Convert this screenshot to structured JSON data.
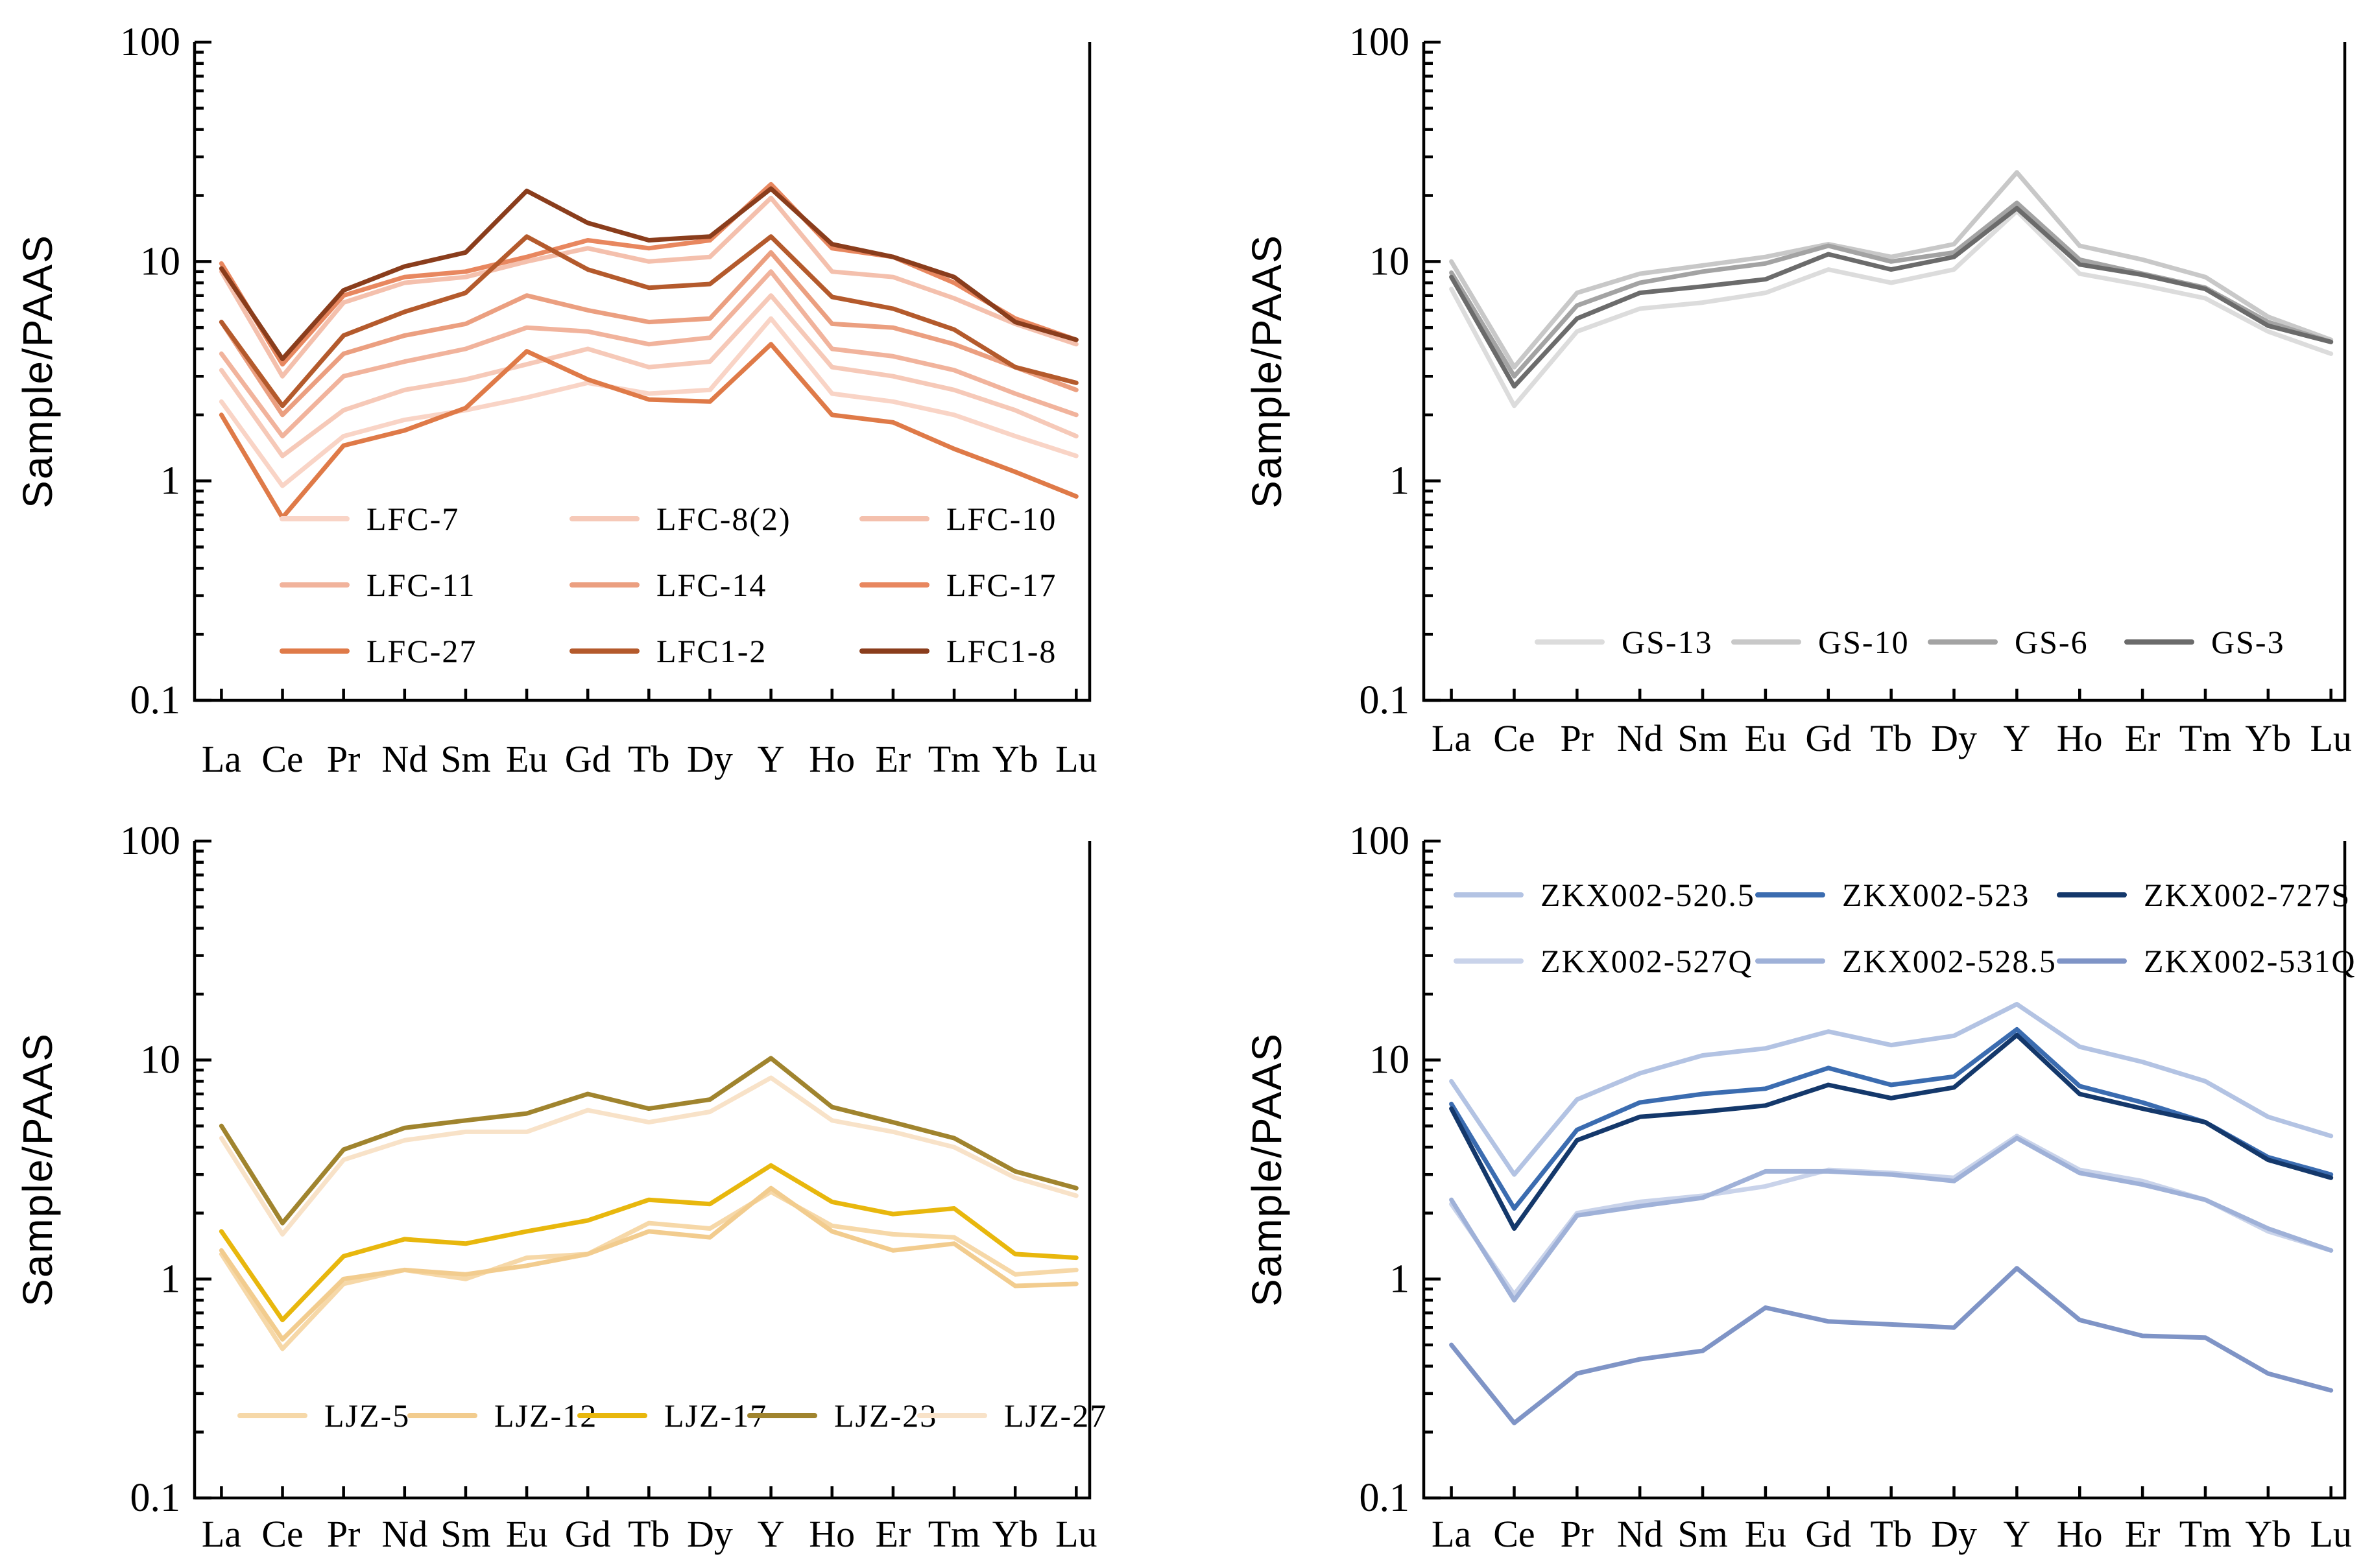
{
  "chart_data": [
    {
      "type": "line",
      "ylabel": "Sample/PAAS",
      "yscale": "log",
      "ylim": [
        0.1,
        100
      ],
      "yticks": [
        "100",
        "10",
        "1",
        "0.1"
      ],
      "categories": [
        "La",
        "Ce",
        "Pr",
        "Nd",
        "Sm",
        "Eu",
        "Gd",
        "Tb",
        "Dy",
        "Y",
        "Ho",
        "Er",
        "Tm",
        "Yb",
        "Lu"
      ],
      "legend_columns": 3,
      "series": [
        {
          "name": "LFC-7",
          "color": "#f9d4c6",
          "values": [
            2.3,
            0.95,
            1.6,
            1.9,
            2.1,
            2.4,
            2.8,
            2.5,
            2.6,
            5.5,
            2.5,
            2.3,
            2.0,
            1.6,
            1.3
          ]
        },
        {
          "name": "LFC-8(2)",
          "color": "#f6c9b8",
          "values": [
            3.2,
            1.3,
            2.1,
            2.6,
            2.9,
            3.4,
            4.0,
            3.3,
            3.5,
            7.0,
            3.3,
            3.0,
            2.6,
            2.1,
            1.6
          ]
        },
        {
          "name": "LFC-10",
          "color": "#f4c0ad",
          "values": [
            9.0,
            3.0,
            6.5,
            8.0,
            8.5,
            10.0,
            11.5,
            10.0,
            10.5,
            19.5,
            9.0,
            8.5,
            6.8,
            5.2,
            4.2
          ]
        },
        {
          "name": "LFC-11",
          "color": "#f1b39c",
          "values": [
            3.8,
            1.6,
            3.0,
            3.5,
            4.0,
            5.0,
            4.8,
            4.2,
            4.5,
            9.0,
            4.0,
            3.7,
            3.2,
            2.5,
            2.0
          ]
        },
        {
          "name": "LFC-14",
          "color": "#eb9f80",
          "values": [
            5.3,
            2.0,
            3.8,
            4.6,
            5.2,
            7.0,
            6.0,
            5.3,
            5.5,
            11.0,
            5.2,
            5.0,
            4.2,
            3.3,
            2.6
          ]
        },
        {
          "name": "LFC-17",
          "color": "#e8875f",
          "values": [
            9.8,
            3.4,
            7.0,
            8.5,
            9.0,
            10.5,
            12.5,
            11.5,
            12.5,
            22.5,
            11.5,
            10.5,
            8.0,
            5.5,
            4.4
          ]
        },
        {
          "name": "LFC-27",
          "color": "#df7a48",
          "values": [
            2.0,
            0.68,
            1.45,
            1.7,
            2.15,
            3.9,
            2.9,
            2.35,
            2.3,
            4.2,
            2.0,
            1.85,
            1.4,
            1.1,
            0.85
          ]
        },
        {
          "name": "LFC1-2",
          "color": "#b45a2c",
          "values": [
            5.3,
            2.2,
            4.6,
            5.9,
            7.2,
            13.0,
            9.2,
            7.6,
            7.9,
            13.0,
            6.9,
            6.1,
            4.9,
            3.3,
            2.8
          ]
        },
        {
          "name": "LFC1-8",
          "color": "#8a3d1c",
          "values": [
            9.3,
            3.6,
            7.4,
            9.5,
            11.0,
            21.0,
            15.0,
            12.5,
            13.0,
            21.5,
            12.0,
            10.5,
            8.5,
            5.3,
            4.4
          ]
        }
      ]
    },
    {
      "type": "line",
      "ylabel": "Sample/PAAS",
      "yscale": "log",
      "ylim": [
        0.1,
        100
      ],
      "yticks": [
        "100",
        "10",
        "1",
        "0.1"
      ],
      "categories": [
        "La",
        "Ce",
        "Pr",
        "Nd",
        "Sm",
        "Eu",
        "Gd",
        "Tb",
        "Dy",
        "Y",
        "Ho",
        "Er",
        "Tm",
        "Yb",
        "Lu"
      ],
      "legend_columns": 4,
      "series": [
        {
          "name": "GS-13",
          "color": "#dcdcdc",
          "values": [
            7.5,
            2.2,
            4.8,
            6.1,
            6.5,
            7.2,
            9.2,
            8.0,
            9.2,
            17.0,
            8.8,
            7.8,
            6.8,
            4.8,
            3.8
          ]
        },
        {
          "name": "GS-10",
          "color": "#c8c8c8",
          "values": [
            10.0,
            3.3,
            7.2,
            8.8,
            9.6,
            10.5,
            12.0,
            10.5,
            12.0,
            25.5,
            11.8,
            10.2,
            8.5,
            5.6,
            4.4
          ]
        },
        {
          "name": "GS-6",
          "color": "#a3a3a3",
          "values": [
            8.9,
            3.0,
            6.3,
            8.0,
            9.0,
            9.8,
            11.8,
            10.0,
            11.0,
            18.5,
            10.2,
            8.8,
            7.6,
            5.3,
            4.3
          ]
        },
        {
          "name": "GS-3",
          "color": "#6b6b6b",
          "values": [
            8.5,
            2.7,
            5.5,
            7.2,
            7.7,
            8.3,
            10.8,
            9.2,
            10.5,
            17.5,
            9.7,
            8.7,
            7.5,
            5.1,
            4.3
          ]
        }
      ]
    },
    {
      "type": "line",
      "ylabel": "Sample/PAAS",
      "yscale": "log",
      "ylim": [
        0.1,
        100
      ],
      "yticks": [
        "100",
        "10",
        "1",
        "0.1"
      ],
      "categories": [
        "La",
        "Ce",
        "Pr",
        "Nd",
        "Sm",
        "Eu",
        "Gd",
        "Tb",
        "Dy",
        "Y",
        "Ho",
        "Er",
        "Tm",
        "Yb",
        "Lu"
      ],
      "legend_columns": 5,
      "series": [
        {
          "name": "LJZ-5",
          "color": "#f6d8a8",
          "values": [
            1.3,
            0.48,
            0.95,
            1.1,
            1.0,
            1.25,
            1.3,
            1.8,
            1.7,
            2.5,
            1.75,
            1.6,
            1.55,
            1.05,
            1.1
          ]
        },
        {
          "name": "LJZ-12",
          "color": "#f2cc8e",
          "values": [
            1.35,
            0.53,
            1.0,
            1.1,
            1.05,
            1.15,
            1.3,
            1.65,
            1.55,
            2.6,
            1.65,
            1.35,
            1.45,
            0.93,
            0.95
          ]
        },
        {
          "name": "LJZ-17",
          "color": "#e8b70d",
          "values": [
            1.65,
            0.65,
            1.27,
            1.52,
            1.45,
            1.65,
            1.85,
            2.3,
            2.2,
            3.3,
            2.25,
            1.98,
            2.1,
            1.3,
            1.25
          ]
        },
        {
          "name": "LJZ-23",
          "color": "#a0842e",
          "values": [
            5.0,
            1.8,
            3.9,
            4.9,
            5.3,
            5.7,
            7.0,
            6.0,
            6.6,
            10.2,
            6.1,
            5.2,
            4.4,
            3.1,
            2.6
          ]
        },
        {
          "name": "LJZ-27",
          "color": "#f8e2c8",
          "values": [
            4.4,
            1.6,
            3.5,
            4.3,
            4.7,
            4.7,
            5.9,
            5.2,
            5.8,
            8.3,
            5.3,
            4.7,
            4.0,
            2.9,
            2.4
          ]
        }
      ]
    },
    {
      "type": "line",
      "ylabel": "Sample/PAAS",
      "yscale": "log",
      "ylim": [
        0.1,
        100
      ],
      "yticks": [
        "100",
        "10",
        "1",
        "0.1"
      ],
      "categories": [
        "La",
        "Ce",
        "Pr",
        "Nd",
        "Sm",
        "Eu",
        "Gd",
        "Tb",
        "Dy",
        "Y",
        "Ho",
        "Er",
        "Tm",
        "Yb",
        "Lu"
      ],
      "legend_columns": 3,
      "series": [
        {
          "name": "ZKX002-520.5",
          "color": "#b3c3e3",
          "values": [
            8.0,
            3.0,
            6.6,
            8.7,
            10.5,
            11.3,
            13.5,
            11.7,
            12.9,
            18.0,
            11.5,
            9.8,
            8.0,
            5.5,
            4.5
          ]
        },
        {
          "name": "ZKX002-523",
          "color": "#3b6cb0",
          "values": [
            6.3,
            2.1,
            4.8,
            6.4,
            7.0,
            7.4,
            9.2,
            7.7,
            8.4,
            13.8,
            7.6,
            6.4,
            5.2,
            3.6,
            3.0
          ]
        },
        {
          "name": "ZKX002-727S",
          "color": "#14386b",
          "values": [
            6.0,
            1.7,
            4.3,
            5.5,
            5.8,
            6.2,
            7.7,
            6.7,
            7.5,
            13.0,
            7.0,
            6.0,
            5.2,
            3.5,
            2.9
          ]
        },
        {
          "name": "ZKX002-527Q",
          "color": "#c9d3ea",
          "values": [
            2.2,
            0.85,
            2.0,
            2.25,
            2.4,
            2.65,
            3.15,
            3.05,
            2.9,
            4.5,
            3.15,
            2.8,
            2.3,
            1.65,
            1.35
          ]
        },
        {
          "name": "ZKX002-528.5",
          "color": "#9fb1d8",
          "values": [
            2.3,
            0.8,
            1.95,
            2.15,
            2.35,
            3.1,
            3.1,
            3.0,
            2.8,
            4.4,
            3.05,
            2.7,
            2.3,
            1.7,
            1.35
          ]
        },
        {
          "name": "ZKX002-531Q",
          "color": "#7f94c6",
          "values": [
            0.5,
            0.22,
            0.37,
            0.43,
            0.47,
            0.74,
            0.64,
            0.62,
            0.6,
            1.12,
            0.65,
            0.55,
            0.54,
            0.37,
            0.31
          ]
        }
      ]
    }
  ]
}
